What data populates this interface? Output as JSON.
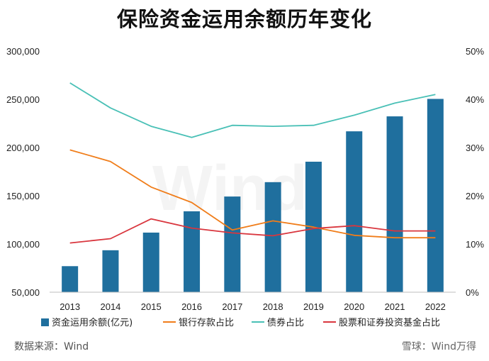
{
  "title": "保险资金运用余额历年变化",
  "source": "数据来源：Wind",
  "brand": "雪球：Wind万得",
  "watermark": "Wind",
  "chart_data": {
    "type": "bar+line",
    "categories": [
      "2013",
      "2014",
      "2015",
      "2016",
      "2017",
      "2018",
      "2019",
      "2020",
      "2021",
      "2022"
    ],
    "y_left": {
      "range": [
        50000,
        300000
      ],
      "ticks": [
        "50,000",
        "100,000",
        "150,000",
        "200,000",
        "250,000",
        "300,000"
      ]
    },
    "y_right": {
      "range": [
        0,
        50
      ],
      "ticks": [
        "0%",
        "10%",
        "20%",
        "30%",
        "40%",
        "50%"
      ]
    },
    "bar_series": {
      "name": "资金运用余额(亿元)",
      "color": "#1f6f9e",
      "values": [
        77000,
        93500,
        111800,
        133900,
        149200,
        164100,
        185300,
        216800,
        232300,
        250400
      ]
    },
    "line_series": [
      {
        "name": "银行存款占比",
        "color": "#f07d1a",
        "values": [
          29.5,
          27.1,
          21.8,
          18.6,
          12.9,
          14.8,
          13.5,
          11.8,
          11.3,
          11.3
        ]
      },
      {
        "name": "债券占比",
        "color": "#49c0b6",
        "values": [
          43.4,
          38.2,
          34.4,
          32.1,
          34.6,
          34.4,
          34.6,
          36.7,
          39.2,
          41.0
        ]
      },
      {
        "name": "股票和证券投资基金占比",
        "color": "#d9363e",
        "values": [
          10.2,
          11.1,
          15.2,
          13.3,
          12.3,
          11.7,
          13.2,
          13.8,
          12.7,
          12.7
        ]
      }
    ],
    "legend_position": "bottom",
    "grid": false
  }
}
